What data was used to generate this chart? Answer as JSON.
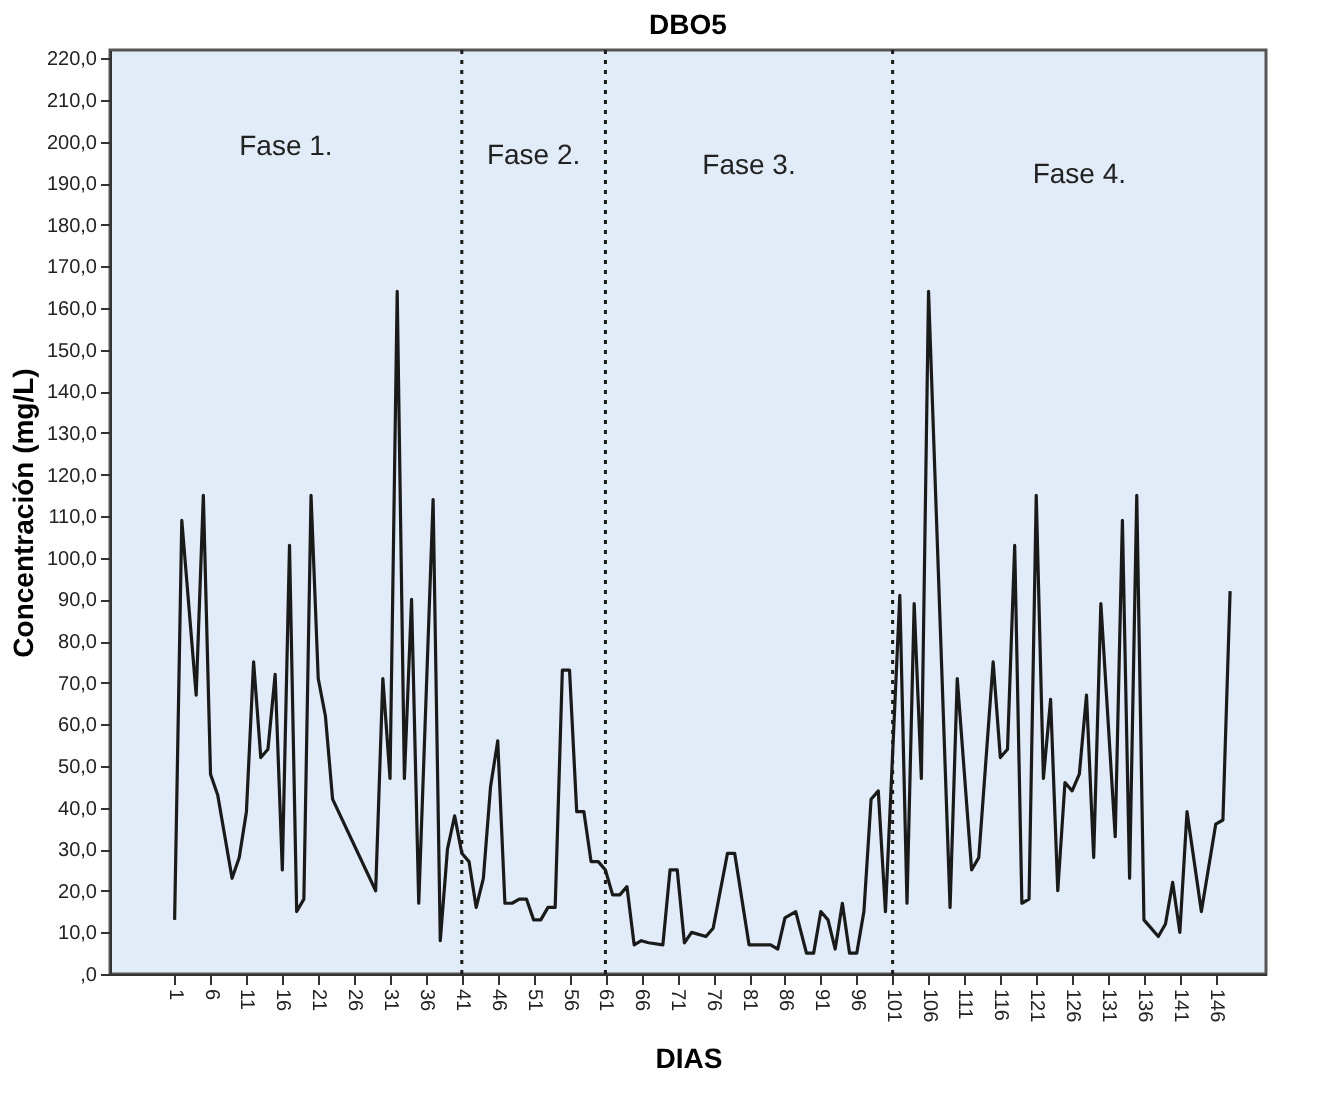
{
  "chart_data": {
    "type": "line",
    "title": "DBO5",
    "xlabel": "DIAS",
    "ylabel": "Concentración (mg/L)",
    "x": [
      1,
      2,
      4,
      5,
      6,
      7,
      9,
      10,
      11,
      12,
      13,
      14,
      15,
      16,
      17,
      18,
      19,
      20,
      21,
      22,
      23,
      29,
      30,
      31,
      32,
      33,
      34,
      35,
      37,
      38,
      39,
      40,
      41,
      42,
      43,
      44,
      45,
      46,
      47,
      48,
      49,
      50,
      51,
      52,
      53,
      54,
      55,
      56,
      57,
      58,
      59,
      60,
      61,
      62,
      63,
      64,
      65,
      66,
      67,
      69,
      70,
      71,
      72,
      73,
      75,
      76,
      78,
      79,
      81,
      84,
      85,
      86,
      87.5,
      89,
      90,
      91,
      92,
      93,
      94,
      95,
      96,
      97,
      98,
      99,
      100,
      102,
      103,
      104,
      105,
      106,
      109,
      110,
      112,
      113,
      115,
      116,
      117,
      118,
      119,
      120,
      121,
      122,
      123,
      124,
      125,
      126,
      127,
      128,
      129,
      130,
      132,
      133,
      134,
      135,
      136,
      138,
      139,
      140,
      141,
      142,
      144,
      146,
      147,
      148
    ],
    "series": [
      {
        "color": "#1a1a1a",
        "values": [
          13,
          109,
          67,
          115,
          48,
          43,
          23,
          28,
          39,
          75,
          52,
          54,
          72,
          25,
          103,
          15,
          18,
          115,
          71,
          62,
          42,
          20,
          71,
          47,
          164,
          47,
          90,
          17,
          114,
          8,
          30,
          38,
          29,
          27,
          16,
          23,
          45,
          56,
          17,
          17,
          18,
          18,
          13,
          13,
          16,
          16,
          73,
          73,
          39,
          39,
          27,
          27,
          25,
          19,
          19,
          21,
          7,
          8,
          7.5,
          7,
          25,
          25,
          7.5,
          10,
          9,
          11,
          29,
          29,
          7,
          7,
          6,
          13.5,
          15,
          5,
          5,
          15,
          13,
          6,
          17,
          5,
          5,
          15,
          42,
          44,
          15,
          91,
          17,
          89,
          47,
          164,
          16,
          71,
          25,
          28,
          75,
          52,
          54,
          103,
          17,
          18,
          115,
          47,
          66,
          20,
          46,
          44,
          48,
          67,
          28,
          89,
          33,
          109,
          23,
          115,
          13,
          9,
          12,
          22,
          10,
          39,
          15,
          36,
          37,
          92
        ]
      }
    ],
    "xlim": [
      -8,
      153
    ],
    "ylim": [
      0,
      222
    ],
    "xticks": [
      1,
      6,
      11,
      16,
      21,
      26,
      31,
      36,
      41,
      46,
      51,
      56,
      61,
      66,
      71,
      76,
      81,
      86,
      91,
      96,
      101,
      106,
      111,
      116,
      121,
      126,
      131,
      136,
      141,
      146
    ],
    "yticks": [
      {
        "value": 0,
        "label": ",0"
      },
      {
        "value": 10,
        "label": "10,0"
      },
      {
        "value": 20,
        "label": "20,0"
      },
      {
        "value": 30,
        "label": "30,0"
      },
      {
        "value": 40,
        "label": "40,0"
      },
      {
        "value": 50,
        "label": "50,0"
      },
      {
        "value": 60,
        "label": "60,0"
      },
      {
        "value": 70,
        "label": "70,0"
      },
      {
        "value": 80,
        "label": "80,0"
      },
      {
        "value": 90,
        "label": "90,0"
      },
      {
        "value": 100,
        "label": "100,0"
      },
      {
        "value": 110,
        "label": "110,0"
      },
      {
        "value": 120,
        "label": "120,0"
      },
      {
        "value": 130,
        "label": "130,0"
      },
      {
        "value": 140,
        "label": "140,0"
      },
      {
        "value": 150,
        "label": "150,0"
      },
      {
        "value": 160,
        "label": "160,0"
      },
      {
        "value": 170,
        "label": "170,0"
      },
      {
        "value": 180,
        "label": "180,0"
      },
      {
        "value": 190,
        "label": "190,0"
      },
      {
        "value": 200,
        "label": "200,0"
      },
      {
        "value": 210,
        "label": "210,0"
      },
      {
        "value": 220,
        "label": "220,0"
      }
    ],
    "ref_lines": [
      {
        "axis": "x",
        "value": 41,
        "color": "#1a1a1a",
        "line_style": "dotted"
      },
      {
        "axis": "x",
        "value": 61,
        "color": "#1a1a1a",
        "line_style": "dotted"
      },
      {
        "axis": "x",
        "value": 101,
        "color": "#1a1a1a",
        "line_style": "dotted"
      }
    ],
    "annotations": [
      "Fase 1.",
      "Fase 2.",
      "Fase 3.",
      "Fase 4."
    ],
    "grid": false,
    "marker": "none",
    "line_style": "solid"
  }
}
